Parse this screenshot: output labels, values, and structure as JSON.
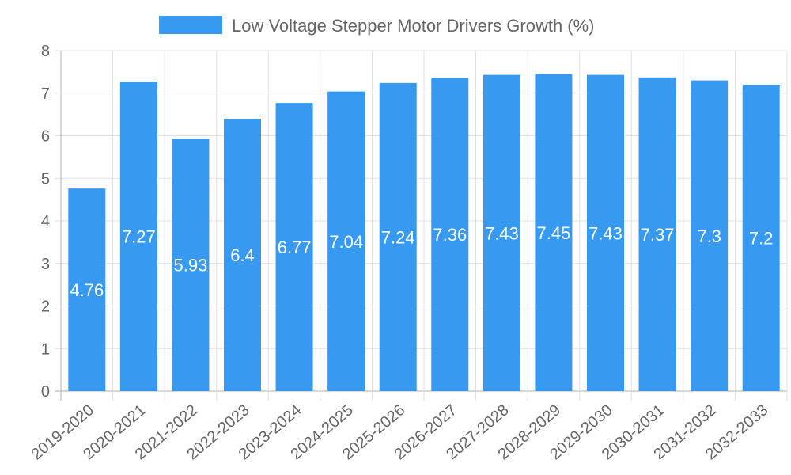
{
  "chart_data": {
    "type": "bar",
    "legend": "Low Voltage Stepper Motor Drivers Growth (%)",
    "legend_position": "top",
    "categories": [
      "2019-2020",
      "2020-2021",
      "2021-2022",
      "2022-2023",
      "2023-2024",
      "2024-2025",
      "2025-2026",
      "2026-2027",
      "2027-2028",
      "2028-2029",
      "2029-2030",
      "2030-2031",
      "2031-2032",
      "2032-2033"
    ],
    "values": [
      4.76,
      7.27,
      5.93,
      6.4,
      6.77,
      7.04,
      7.24,
      7.36,
      7.43,
      7.45,
      7.43,
      7.37,
      7.3,
      7.2
    ],
    "data_labels": [
      "4.76",
      "7.27",
      "5.93",
      "6.4",
      "6.77",
      "7.04",
      "7.24",
      "7.36",
      "7.43",
      "7.45",
      "7.43",
      "7.37",
      "7.3",
      "7.2"
    ],
    "yticks": [
      "0",
      "1",
      "2",
      "3",
      "4",
      "5",
      "6",
      "7",
      "8"
    ],
    "ylim": [
      0,
      8
    ],
    "grid": true,
    "bar_color": "#3799f0",
    "grid_color": "#e0e0e0",
    "axis_color": "#b0b0b0"
  }
}
